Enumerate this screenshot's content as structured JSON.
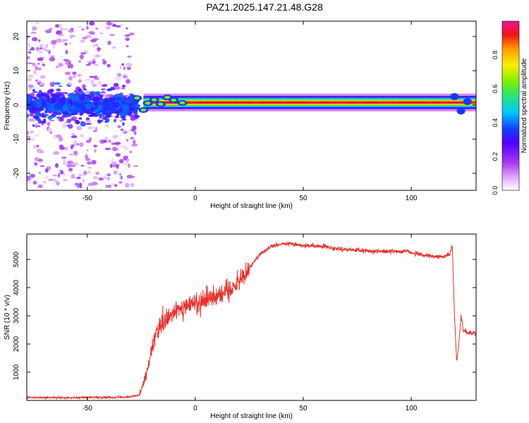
{
  "title": "PAZ1.2025.147.21.48.G28",
  "colors": {
    "snr_line": "#e8302a",
    "band_core": "#e01030",
    "scatter": "#7a1fff"
  },
  "chart_data": [
    {
      "type": "heatmap",
      "xlabel": "Height of straight line (km)",
      "ylabel": "Frequency (Hz)",
      "xlim": [
        -78,
        130
      ],
      "ylim": [
        -25,
        24.5
      ],
      "xticks": [
        -50,
        0,
        50,
        100
      ],
      "yticks": [
        -20,
        -10,
        0,
        10,
        20
      ],
      "colorbar": {
        "label": "Normalized spectral amplitude",
        "range": [
          0,
          1
        ],
        "ticks": [
          0.0,
          0.2,
          0.4,
          0.6,
          0.8
        ],
        "colormap": "rainbow (white-magenta-purple-blue-cyan-green-yellow-orange-red-pink)"
      },
      "features": {
        "noisy_region_x": [
          -78,
          -27
        ],
        "noisy_region_freq_spread_hz": [
          -25,
          24
        ],
        "tone_region_x": [
          -27,
          130
        ],
        "tone_center_freq_hz": 0.7,
        "tone_peak_amplitude": 1.0
      }
    },
    {
      "type": "line",
      "xlabel": "Height of straight line (km)",
      "ylabel": "SNR (10 * v/v)",
      "xlim": [
        -78,
        130
      ],
      "ylim": [
        0,
        5900
      ],
      "xticks": [
        -50,
        0,
        50,
        100
      ],
      "yticks": [
        1000,
        2000,
        3000,
        4000,
        5000
      ],
      "series": [
        {
          "x": [
            -78,
            -60,
            -40,
            -30,
            -26,
            -24,
            -22,
            -20,
            -18,
            -15,
            -12,
            -10,
            -5,
            0,
            5,
            10,
            15,
            20,
            25,
            30,
            35,
            40,
            45,
            50,
            60,
            70,
            80,
            90,
            98,
            100,
            105,
            110,
            115,
            118,
            119,
            120,
            121,
            122,
            123,
            124,
            126,
            130
          ],
          "y": [
            100,
            100,
            110,
            130,
            200,
            600,
            1100,
            1800,
            2400,
            2700,
            2900,
            3100,
            3300,
            3450,
            3600,
            3750,
            3900,
            4200,
            4700,
            5200,
            5450,
            5550,
            5550,
            5500,
            5450,
            5350,
            5300,
            5280,
            5300,
            5250,
            5150,
            5100,
            5100,
            5200,
            5500,
            3000,
            1400,
            2000,
            3000,
            2500,
            2400,
            2400
          ]
        }
      ]
    }
  ]
}
